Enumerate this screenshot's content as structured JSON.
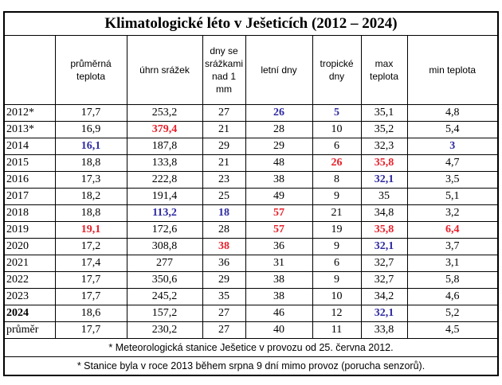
{
  "title": "Klimatologické léto v Ješeticích (2012 – 2024)",
  "columns": [
    "",
    "průměrná teplota",
    "úhrn srážek",
    "dny se srážkami nad 1 mm",
    "letní dny",
    "tropické dny",
    "max teplota",
    "min teplota"
  ],
  "column_lines": {
    "c1": [
      "průměrná",
      "teplota"
    ],
    "c3": [
      "dny se",
      "srážkami",
      "nad 1",
      "mm"
    ],
    "c5": [
      "tropické",
      "dny"
    ],
    "c6": [
      "max",
      "teplota"
    ]
  },
  "rows": [
    {
      "label": "2012*",
      "label_bold": false,
      "cells": [
        "17,7",
        "253,2",
        "27",
        "26",
        "5",
        "35,1",
        "4,8"
      ],
      "styles": [
        "",
        "",
        "",
        "blue",
        "blue",
        "",
        ""
      ]
    },
    {
      "label": "2013*",
      "label_bold": false,
      "cells": [
        "16,9",
        "379,4",
        "21",
        "28",
        "10",
        "35,2",
        "5,4"
      ],
      "styles": [
        "",
        "red",
        "",
        "",
        "",
        "",
        ""
      ]
    },
    {
      "label": "2014",
      "label_bold": false,
      "cells": [
        "16,1",
        "187,8",
        "29",
        "29",
        "6",
        "32,3",
        "3"
      ],
      "styles": [
        "blue",
        "",
        "",
        "",
        "",
        "",
        "blue"
      ]
    },
    {
      "label": "2015",
      "label_bold": false,
      "cells": [
        "18,8",
        "133,8",
        "21",
        "48",
        "26",
        "35,8",
        "4,7"
      ],
      "styles": [
        "",
        "",
        "",
        "",
        "red",
        "red",
        ""
      ]
    },
    {
      "label": "2016",
      "label_bold": false,
      "cells": [
        "17,3",
        "222,8",
        "23",
        "38",
        "8",
        "32,1",
        "3,5"
      ],
      "styles": [
        "",
        "",
        "",
        "",
        "",
        "blue",
        ""
      ]
    },
    {
      "label": "2017",
      "label_bold": false,
      "cells": [
        "18,2",
        "191,4",
        "25",
        "49",
        "9",
        "35",
        "5,1"
      ],
      "styles": [
        "",
        "",
        "",
        "",
        "",
        "",
        ""
      ]
    },
    {
      "label": "2018",
      "label_bold": false,
      "cells": [
        "18,8",
        "113,2",
        "18",
        "57",
        "21",
        "34,8",
        "3,2"
      ],
      "styles": [
        "",
        "blue",
        "blue",
        "red",
        "",
        "",
        ""
      ]
    },
    {
      "label": "2019",
      "label_bold": false,
      "cells": [
        "19,1",
        "172,6",
        "28",
        "57",
        "19",
        "35,8",
        "6,4"
      ],
      "styles": [
        "red",
        "",
        "",
        "red",
        "",
        "red",
        "red"
      ]
    },
    {
      "label": "2020",
      "label_bold": false,
      "cells": [
        "17,2",
        "308,8",
        "38",
        "36",
        "9",
        "32,1",
        "3,7"
      ],
      "styles": [
        "",
        "",
        "red",
        "",
        "",
        "blue",
        ""
      ]
    },
    {
      "label": "2021",
      "label_bold": false,
      "cells": [
        "17,4",
        "277",
        "36",
        "31",
        "6",
        "32,7",
        "3,1"
      ],
      "styles": [
        "",
        "",
        "",
        "",
        "",
        "",
        ""
      ]
    },
    {
      "label": "2022",
      "label_bold": false,
      "cells": [
        "17,7",
        "350,6",
        "29",
        "38",
        "9",
        "32,7",
        "5,8"
      ],
      "styles": [
        "",
        "",
        "",
        "",
        "",
        "",
        ""
      ]
    },
    {
      "label": "2023",
      "label_bold": false,
      "cells": [
        "17,7",
        "245,2",
        "35",
        "38",
        "10",
        "34,2",
        "4,6"
      ],
      "styles": [
        "",
        "",
        "",
        "",
        "",
        "",
        ""
      ]
    },
    {
      "label": "2024",
      "label_bold": true,
      "cells": [
        "18,6",
        "157,2",
        "27",
        "46",
        "12",
        "32,1",
        "5,2"
      ],
      "styles": [
        "",
        "",
        "",
        "",
        "",
        "blue",
        ""
      ]
    },
    {
      "label": "průměr",
      "label_bold": false,
      "cells": [
        "17,7",
        "230,2",
        "27",
        "40",
        "11",
        "33,8",
        "4,5"
      ],
      "styles": [
        "",
        "",
        "",
        "",
        "",
        "",
        ""
      ]
    }
  ],
  "notes": [
    "* Meteorologická stanice Ješetice v provozu od 25. června 2012.",
    "* Stanice byla v roce 2013 během srpna 9 dní mimo provoz (porucha senzorů)."
  ],
  "colors": {
    "highlight_max": "#e8202a",
    "highlight_min": "#2e2aa0"
  }
}
